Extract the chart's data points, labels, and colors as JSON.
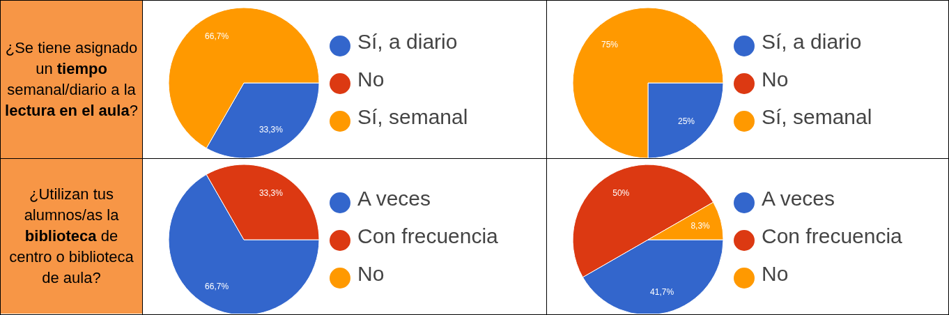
{
  "chart_data": [
    {
      "type": "other",
      "annotations": [
        "¿Se tiene asignado un ",
        "tiempo",
        " semanal/diario a la ",
        "lectura en el aula",
        "?"
      ]
    },
    {
      "type": "pie",
      "categories": [
        "Sí, a diario",
        "No",
        "Sí, semanal"
      ],
      "values": [
        33.3,
        0,
        66.7
      ],
      "colors": [
        "#3366cc",
        "#dc3912",
        "#ff9900"
      ],
      "value_labels": [
        "33,3%",
        null,
        "66,7%"
      ],
      "legend": "right"
    },
    {
      "type": "pie",
      "categories": [
        "Sí, a diario",
        "No",
        "Sí, semanal"
      ],
      "values": [
        25,
        0,
        75
      ],
      "colors": [
        "#3366cc",
        "#dc3912",
        "#ff9900"
      ],
      "value_labels": [
        "25%",
        null,
        "75%"
      ],
      "legend": "right"
    },
    {
      "type": "other",
      "annotations": [
        "¿Utilizan tus alumnos/as la ",
        "biblioteca",
        " de centro o biblioteca de aula?"
      ]
    },
    {
      "type": "pie",
      "categories": [
        "A veces",
        "Con frecuencia",
        "No"
      ],
      "values": [
        66.7,
        33.3,
        0
      ],
      "colors": [
        "#3366cc",
        "#dc3912",
        "#ff9900"
      ],
      "value_labels": [
        "66,7%",
        "33,3%",
        null
      ],
      "legend": "right"
    },
    {
      "type": "pie",
      "categories": [
        "A veces",
        "Con frecuencia",
        "No"
      ],
      "values": [
        41.7,
        50,
        8.3
      ],
      "colors": [
        "#3366cc",
        "#dc3912",
        "#ff9900"
      ],
      "value_labels": [
        "41,7%",
        "50%",
        "8,3%"
      ],
      "legend": "right"
    }
  ]
}
